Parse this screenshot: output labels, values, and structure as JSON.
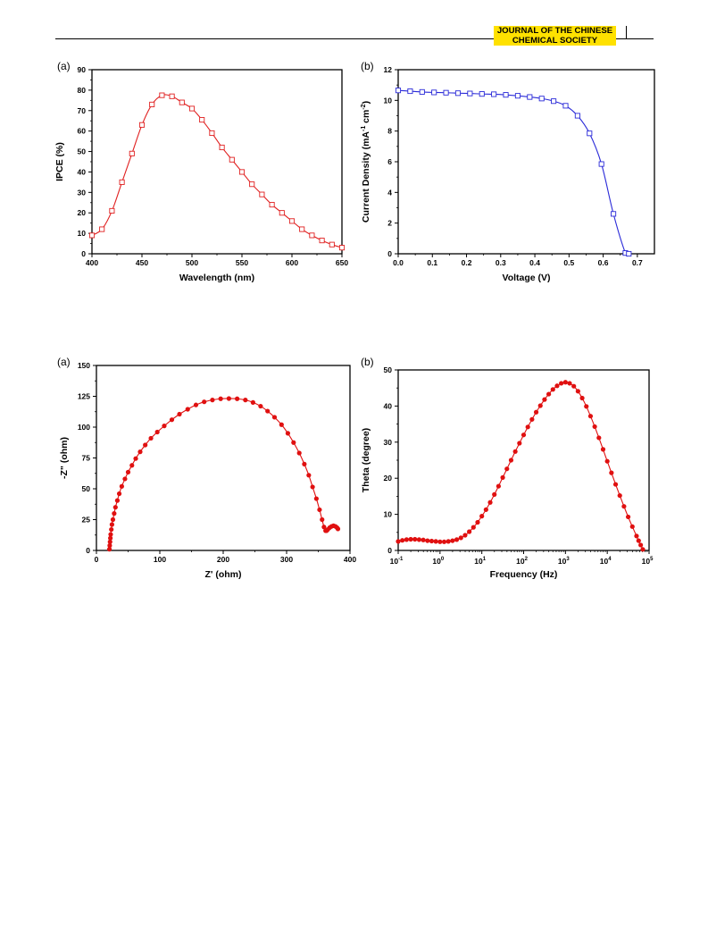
{
  "header": {
    "journal_line1": "JOURNAL OF THE CHINESE",
    "journal_line2": "CHEMICAL SOCIETY",
    "accent_color": "#ffe100"
  },
  "chart_data": [
    {
      "id": "ipce",
      "panel_label": "(a)",
      "type": "line",
      "xlabel": "Wavelength (nm)",
      "ylabel": "IPCE (%)",
      "xlim": [
        400,
        650
      ],
      "ylim": [
        0,
        90
      ],
      "xticks": [
        400,
        450,
        500,
        550,
        600,
        650
      ],
      "yticks": [
        0,
        10,
        20,
        30,
        40,
        50,
        60,
        70,
        80,
        90
      ],
      "color": "#e02020",
      "marker": "open-square",
      "series": [
        {
          "x": [
            400,
            410,
            420,
            430,
            440,
            450,
            460,
            470,
            480,
            490,
            500,
            510,
            520,
            530,
            540,
            550,
            560,
            570,
            580,
            590,
            600,
            610,
            620,
            630,
            640,
            650
          ],
          "y": [
            9,
            12,
            21,
            35,
            49,
            63,
            73,
            77.5,
            77,
            74,
            71,
            65.5,
            59,
            52,
            46,
            40,
            34,
            29,
            24,
            20,
            16,
            12,
            9,
            6.5,
            4.5,
            3
          ]
        }
      ]
    },
    {
      "id": "jv",
      "panel_label": "(b)",
      "type": "line",
      "xlabel": "Voltage (V)",
      "ylabel": "Current Density (mA cm)",
      "ylabel_sup1": "-1",
      "ylabel_sup2": "-2",
      "xlim": [
        0,
        0.75
      ],
      "ylim": [
        0,
        12
      ],
      "xticks": [
        0.0,
        0.1,
        0.2,
        0.3,
        0.4,
        0.5,
        0.6,
        0.7
      ],
      "xtick_labels": [
        "0.0",
        "0.1",
        "0.2",
        "0.3",
        "0.4",
        "0.5",
        "0.6",
        "0.7"
      ],
      "yticks": [
        0,
        2,
        4,
        6,
        8,
        10,
        12
      ],
      "color": "#2a2ad8",
      "marker": "open-square",
      "series": [
        {
          "x": [
            0,
            0.035,
            0.07,
            0.105,
            0.14,
            0.175,
            0.21,
            0.245,
            0.28,
            0.315,
            0.35,
            0.385,
            0.42,
            0.455,
            0.49,
            0.525,
            0.56,
            0.595,
            0.63,
            0.665,
            0.675
          ],
          "y": [
            10.65,
            10.6,
            10.55,
            10.52,
            10.5,
            10.47,
            10.45,
            10.42,
            10.4,
            10.36,
            10.3,
            10.22,
            10.12,
            9.95,
            9.65,
            9.0,
            7.85,
            5.85,
            2.6,
            0.05,
            0
          ]
        }
      ]
    },
    {
      "id": "nyquist",
      "panel_label": "(a)",
      "type": "scatter",
      "xlabel": "Z' (ohm)",
      "ylabel": "-Z\" (ohm)",
      "xlim": [
        0,
        400
      ],
      "ylim": [
        0,
        150
      ],
      "xticks": [
        0,
        100,
        200,
        300,
        400
      ],
      "yticks": [
        0,
        25,
        50,
        75,
        100,
        125,
        150
      ],
      "color": "#e01010",
      "marker": "filled-circle",
      "series": [
        {
          "x": [
            20.5,
            21,
            21.5,
            22,
            22.5,
            23.5,
            24.5,
            26,
            28,
            30,
            33,
            36,
            40,
            45,
            50,
            56,
            62,
            69,
            77,
            86,
            96,
            107,
            119,
            131,
            144,
            157,
            170,
            183,
            196,
            209,
            222,
            235,
            247,
            259,
            270,
            281,
            292,
            302,
            311,
            320,
            328,
            335,
            341,
            347,
            352,
            356,
            359,
            361.5,
            363,
            365,
            368,
            371,
            374,
            377,
            379.5,
            381
          ],
          "y": [
            1,
            4,
            7,
            10,
            13,
            17,
            21,
            25,
            30,
            35,
            40.5,
            46,
            52,
            58,
            63.5,
            69,
            74.5,
            80,
            85.5,
            91,
            96,
            101,
            106,
            110.5,
            114.5,
            118,
            120.5,
            122,
            123,
            123.2,
            123,
            122,
            120,
            117,
            113,
            108,
            102,
            95,
            87.5,
            79,
            70,
            61,
            51.5,
            42,
            33,
            25,
            19,
            16,
            16,
            17,
            18.5,
            19.5,
            20,
            19.5,
            18.5,
            17.5
          ]
        }
      ]
    },
    {
      "id": "bode",
      "panel_label": "(b)",
      "type": "scatter",
      "xlabel": "Frequency (Hz)",
      "ylabel": "Theta (degree)",
      "xscale": "log",
      "xlim_exp": [
        -1,
        5
      ],
      "ylim": [
        0,
        50
      ],
      "xtick_exponents": [
        "-1",
        "0",
        "1",
        "2",
        "3",
        "4",
        "5"
      ],
      "xtick_base": "10",
      "yticks": [
        0,
        10,
        20,
        30,
        40,
        50
      ],
      "color": "#e01010",
      "marker": "filled-circle",
      "series": [
        {
          "x_exp": [
            -1,
            -0.9,
            -0.8,
            -0.7,
            -0.6,
            -0.5,
            -0.4,
            -0.3,
            -0.2,
            -0.1,
            0,
            0.1,
            0.2,
            0.3,
            0.4,
            0.5,
            0.6,
            0.7,
            0.8,
            0.9,
            1.0,
            1.1,
            1.2,
            1.3,
            1.4,
            1.5,
            1.6,
            1.7,
            1.8,
            1.9,
            2.0,
            2.1,
            2.2,
            2.3,
            2.4,
            2.5,
            2.6,
            2.7,
            2.8,
            2.9,
            3.0,
            3.1,
            3.2,
            3.3,
            3.4,
            3.5,
            3.6,
            3.7,
            3.8,
            3.9,
            4.0,
            4.1,
            4.2,
            4.3,
            4.4,
            4.5,
            4.6,
            4.7,
            4.75,
            4.8,
            4.85
          ],
          "y": [
            2.5,
            2.8,
            3.0,
            3.1,
            3.1,
            3.0,
            2.9,
            2.7,
            2.6,
            2.5,
            2.4,
            2.4,
            2.5,
            2.7,
            3.0,
            3.5,
            4.2,
            5.2,
            6.4,
            7.8,
            9.5,
            11.3,
            13.3,
            15.5,
            17.8,
            20.2,
            22.6,
            25.0,
            27.4,
            29.7,
            32.0,
            34.2,
            36.3,
            38.3,
            40.1,
            41.8,
            43.3,
            44.6,
            45.6,
            46.3,
            46.6,
            46.3,
            45.5,
            44.1,
            42.2,
            39.9,
            37.2,
            34.3,
            31.2,
            28.0,
            24.7,
            21.5,
            18.3,
            15.2,
            12.2,
            9.3,
            6.6,
            4.0,
            2.7,
            1.5,
            0.3
          ]
        }
      ]
    }
  ]
}
